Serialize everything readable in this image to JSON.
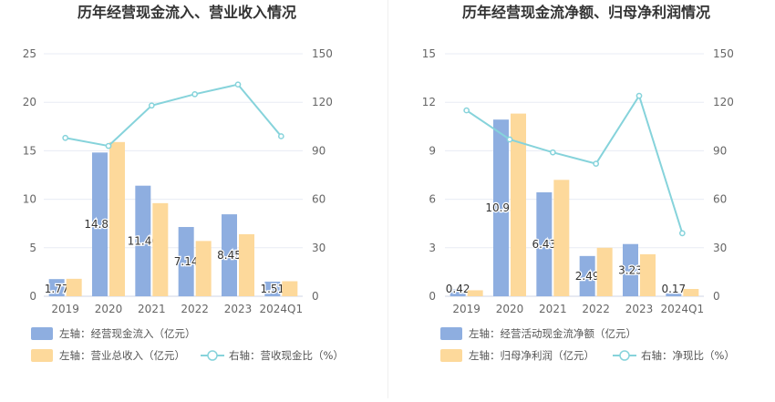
{
  "chart_data": [
    {
      "type": "bar",
      "title": "历年经营现金流入、营业收入情况",
      "categories": [
        "2019",
        "2020",
        "2021",
        "2022",
        "2023",
        "2024Q1"
      ],
      "ylim_left": [
        0,
        25
      ],
      "ylim_right": [
        0,
        150
      ],
      "left_ticks": [
        "0",
        "5",
        "10",
        "15",
        "20",
        "25"
      ],
      "right_ticks": [
        "0",
        "30",
        "60",
        "90",
        "120",
        "150"
      ],
      "series": [
        {
          "name": "左轴：经营现金流入（亿元）",
          "kind": "bar",
          "axis": "left",
          "color": "#8eaee0",
          "values": [
            1.77,
            14.82,
            11.4,
            7.14,
            8.45,
            1.51
          ],
          "labels": [
            "1.77",
            "14.82",
            "11.40",
            "7.14",
            "8.45",
            "1.51"
          ]
        },
        {
          "name": "左轴：营业总收入（亿元）",
          "kind": "bar",
          "axis": "left",
          "color": "#fdd99b",
          "values": [
            1.8,
            15.9,
            9.6,
            5.7,
            6.4,
            1.55
          ]
        },
        {
          "name": "右轴：营收现金比（%）",
          "kind": "line",
          "axis": "right",
          "color": "#86d3db",
          "values": [
            98,
            93,
            118,
            125,
            131,
            99
          ]
        }
      ],
      "legend_placement": "bottom",
      "grid": true
    },
    {
      "type": "bar",
      "title": "历年经营现金流净额、归母净利润情况",
      "categories": [
        "2019",
        "2020",
        "2021",
        "2022",
        "2023",
        "2024Q1"
      ],
      "ylim_left": [
        0,
        15
      ],
      "ylim_right": [
        0,
        150
      ],
      "left_ticks": [
        "0",
        "3",
        "6",
        "9",
        "12",
        "15"
      ],
      "right_ticks": [
        "0",
        "30",
        "60",
        "90",
        "120",
        "150"
      ],
      "series": [
        {
          "name": "左轴：经营活动现金流净额（亿元）",
          "kind": "bar",
          "axis": "left",
          "color": "#8eaee0",
          "values": [
            0.42,
            10.93,
            6.43,
            2.49,
            3.23,
            0.17
          ],
          "labels": [
            "0.42",
            "10.93",
            "6.43",
            "2.49",
            "3.23",
            "0.17"
          ]
        },
        {
          "name": "左轴：归母净利润（亿元）",
          "kind": "bar",
          "axis": "left",
          "color": "#fdd99b",
          "values": [
            0.37,
            11.3,
            7.2,
            3.0,
            2.6,
            0.45
          ]
        },
        {
          "name": "右轴：净现比（%）",
          "kind": "line",
          "axis": "right",
          "color": "#86d3db",
          "values": [
            115,
            97,
            89,
            82,
            124,
            39
          ]
        }
      ],
      "legend_placement": "bottom",
      "grid": true
    }
  ]
}
